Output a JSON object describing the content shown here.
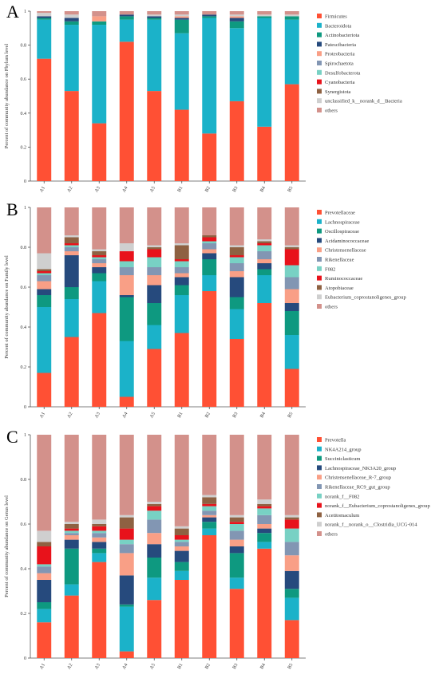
{
  "colors": [
    "#ff5034",
    "#1bb2c9",
    "#0e9980",
    "#264a7d",
    "#f99f86",
    "#8296b3",
    "#78d1c4",
    "#e8121b",
    "#8e6142",
    "#cfcfcf",
    "#d3918b"
  ],
  "chart_data": [
    {
      "type": "bar",
      "stacked": true,
      "panel_letter": "A",
      "ylabel": "Percent of community abundance on Phylum level",
      "ylim": [
        0,
        1
      ],
      "yticks": [
        "0",
        "0.2",
        "0.4",
        "0.6",
        "0.8",
        "1"
      ],
      "categories": [
        "A1",
        "A2",
        "A3",
        "A4",
        "A5",
        "B1",
        "B2",
        "B3",
        "B4",
        "B5"
      ],
      "legend_position": "right",
      "series": [
        {
          "name": "Firmicutes",
          "values": [
            0.72,
            0.53,
            0.34,
            0.82,
            0.53,
            0.42,
            0.28,
            0.47,
            0.32,
            0.57
          ]
        },
        {
          "name": "Bacteroidota",
          "values": [
            0.23,
            0.39,
            0.58,
            0.13,
            0.42,
            0.45,
            0.68,
            0.43,
            0.64,
            0.38
          ]
        },
        {
          "name": "Actinobacteriota",
          "values": [
            0.01,
            0.02,
            0.02,
            0.02,
            0.01,
            0.08,
            0.01,
            0.04,
            0.01,
            0.02
          ]
        },
        {
          "name": "Patescibacteria",
          "values": [
            0.01,
            0.02,
            0.0,
            0.01,
            0.01,
            0.01,
            0.01,
            0.02,
            0.0,
            0.0
          ]
        },
        {
          "name": "Proteobacteria",
          "values": [
            0.0,
            0.0,
            0.03,
            0.0,
            0.0,
            0.01,
            0.0,
            0.01,
            0.0,
            0.0
          ]
        },
        {
          "name": "Spirochaetota",
          "values": [
            0.0,
            0.0,
            0.0,
            0.0,
            0.0,
            0.0,
            0.0,
            0.0,
            0.0,
            0.0
          ]
        },
        {
          "name": "Desulfobacterota",
          "values": [
            0.0,
            0.0,
            0.0,
            0.0,
            0.0,
            0.0,
            0.0,
            0.0,
            0.0,
            0.0
          ]
        },
        {
          "name": "Cyanobacteria",
          "values": [
            0.0,
            0.0,
            0.0,
            0.0,
            0.0,
            0.0,
            0.0,
            0.0,
            0.0,
            0.0
          ]
        },
        {
          "name": "Synergistota",
          "values": [
            0.0,
            0.0,
            0.0,
            0.0,
            0.0,
            0.0,
            0.0,
            0.0,
            0.0,
            0.0
          ]
        },
        {
          "name": "unclassified_k__norank_d__Bacteria",
          "values": [
            0.02,
            0.02,
            0.0,
            0.0,
            0.01,
            0.01,
            0.0,
            0.01,
            0.01,
            0.01
          ]
        },
        {
          "name": "others",
          "values": [
            0.01,
            0.02,
            0.03,
            0.02,
            0.02,
            0.02,
            0.02,
            0.02,
            0.02,
            0.02
          ]
        }
      ]
    },
    {
      "type": "bar",
      "stacked": true,
      "panel_letter": "B",
      "ylabel": "Percent of community abundance on Family level",
      "ylim": [
        0,
        1
      ],
      "yticks": [
        "0",
        "0.2",
        "0.4",
        "0.6",
        "0.8",
        "1"
      ],
      "categories": [
        "A1",
        "A2",
        "A3",
        "A4",
        "A5",
        "B1",
        "B2",
        "B3",
        "B4",
        "B5"
      ],
      "legend_position": "right",
      "series": [
        {
          "name": "Prevotellaceae",
          "values": [
            0.17,
            0.35,
            0.47,
            0.05,
            0.29,
            0.37,
            0.58,
            0.34,
            0.52,
            0.19
          ]
        },
        {
          "name": "Lachnospiraceae",
          "values": [
            0.33,
            0.19,
            0.16,
            0.28,
            0.12,
            0.19,
            0.08,
            0.15,
            0.14,
            0.17
          ]
        },
        {
          "name": "Oscillospiraceae",
          "values": [
            0.06,
            0.06,
            0.04,
            0.22,
            0.11,
            0.05,
            0.08,
            0.06,
            0.03,
            0.12
          ]
        },
        {
          "name": "Acidaminococcaceae",
          "values": [
            0.03,
            0.16,
            0.03,
            0.01,
            0.09,
            0.04,
            0.03,
            0.1,
            0.03,
            0.04
          ]
        },
        {
          "name": "Christensenellaceae",
          "values": [
            0.04,
            0.02,
            0.02,
            0.1,
            0.05,
            0.02,
            0.02,
            0.03,
            0.02,
            0.07
          ]
        },
        {
          "name": "Rikenellaceae",
          "values": [
            0.03,
            0.02,
            0.02,
            0.04,
            0.04,
            0.03,
            0.03,
            0.04,
            0.04,
            0.06
          ]
        },
        {
          "name": "F082",
          "values": [
            0.01,
            0.01,
            0.01,
            0.03,
            0.05,
            0.03,
            0.01,
            0.03,
            0.03,
            0.06
          ]
        },
        {
          "name": "Ruminococcaceae",
          "values": [
            0.01,
            0.01,
            0.01,
            0.05,
            0.04,
            0.01,
            0.02,
            0.01,
            0.01,
            0.08
          ]
        },
        {
          "name": "Atopobiaceae",
          "values": [
            0.01,
            0.03,
            0.02,
            0.0,
            0.01,
            0.07,
            0.01,
            0.04,
            0.01,
            0.01
          ]
        },
        {
          "name": "Eubacterium_coprostanoligenes_group",
          "values": [
            0.08,
            0.01,
            0.01,
            0.04,
            0.01,
            0.01,
            0.0,
            0.01,
            0.01,
            0.01
          ]
        },
        {
          "name": "others",
          "values": [
            0.23,
            0.14,
            0.21,
            0.18,
            0.19,
            0.18,
            0.14,
            0.19,
            0.16,
            0.19
          ]
        }
      ]
    },
    {
      "type": "bar",
      "stacked": true,
      "panel_letter": "C",
      "ylabel": "Percent of community abundance on Genus level",
      "ylim": [
        0,
        1
      ],
      "yticks": [
        "0",
        "0.2",
        "0.4",
        "0.6",
        "0.8",
        "1"
      ],
      "categories": [
        "A1",
        "A2",
        "A3",
        "A4",
        "A5",
        "B1",
        "B2",
        "B3",
        "B4",
        "B5"
      ],
      "legend_position": "right",
      "series": [
        {
          "name": "Prevotella",
          "values": [
            0.16,
            0.28,
            0.43,
            0.03,
            0.26,
            0.35,
            0.55,
            0.31,
            0.49,
            0.17
          ]
        },
        {
          "name": "NK4A214_group",
          "values": [
            0.06,
            0.05,
            0.04,
            0.2,
            0.1,
            0.04,
            0.03,
            0.05,
            0.03,
            0.1
          ]
        },
        {
          "name": "Succiniclasticum",
          "values": [
            0.03,
            0.16,
            0.02,
            0.01,
            0.09,
            0.04,
            0.03,
            0.11,
            0.04,
            0.04
          ]
        },
        {
          "name": "Lachnospiraceae_NK3A20_group",
          "values": [
            0.1,
            0.04,
            0.03,
            0.13,
            0.06,
            0.05,
            0.02,
            0.03,
            0.02,
            0.08
          ]
        },
        {
          "name": "Christensenellaceae_R-7_group",
          "values": [
            0.03,
            0.02,
            0.02,
            0.1,
            0.05,
            0.02,
            0.01,
            0.03,
            0.02,
            0.07
          ]
        },
        {
          "name": "Rikenellaceae_RC9_gut_group",
          "values": [
            0.03,
            0.01,
            0.02,
            0.04,
            0.06,
            0.02,
            0.02,
            0.04,
            0.04,
            0.06
          ]
        },
        {
          "name": "norank_f__F082",
          "values": [
            0.01,
            0.01,
            0.01,
            0.02,
            0.04,
            0.01,
            0.02,
            0.03,
            0.03,
            0.06
          ]
        },
        {
          "name": "norank_f__Eubacterium_coprostanoligenes_group",
          "values": [
            0.08,
            0.01,
            0.02,
            0.05,
            0.02,
            0.02,
            0.01,
            0.01,
            0.01,
            0.04
          ]
        },
        {
          "name": "Acetitomaculum",
          "values": [
            0.02,
            0.02,
            0.01,
            0.05,
            0.01,
            0.03,
            0.03,
            0.02,
            0.01,
            0.01
          ]
        },
        {
          "name": "norank_f__norank_o__Clostridia_UCG-014",
          "values": [
            0.05,
            0.01,
            0.02,
            0.01,
            0.01,
            0.01,
            0.01,
            0.01,
            0.02,
            0.01
          ]
        },
        {
          "name": "others",
          "values": [
            0.43,
            0.39,
            0.38,
            0.36,
            0.3,
            0.41,
            0.27,
            0.36,
            0.29,
            0.36
          ]
        }
      ]
    }
  ]
}
